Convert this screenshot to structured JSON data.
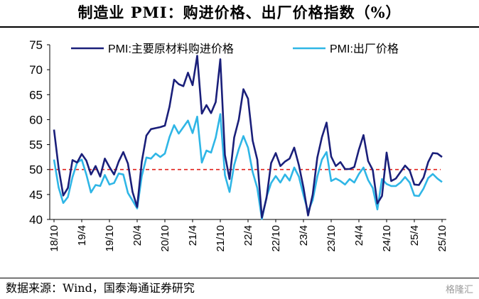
{
  "title": "制造业 PMI：购进价格、出厂价格指数（%）",
  "source": "数据来源：Wind，国泰海通证券研究",
  "watermark": "格隆汇",
  "chart_data": {
    "type": "line",
    "title": "制造业 PMI：购进价格、出厂价格指数（%）",
    "xlabel": "",
    "ylabel": "",
    "ylim": [
      40,
      75
    ],
    "yticks": [
      40,
      45,
      50,
      55,
      60,
      65,
      70,
      75
    ],
    "grid": false,
    "legend_position": "top",
    "reference_line": {
      "value": 50,
      "color": "#e0201b",
      "style": "dashed"
    },
    "xtick_labels": [
      "18/10",
      "19/4",
      "19/10",
      "20/4",
      "20/10",
      "21/4",
      "21/10",
      "22/4",
      "22/10",
      "23/4",
      "23/10",
      "24/4",
      "24/10",
      "25/4",
      "25/10"
    ],
    "x": [
      "18/10",
      "18/11",
      "18/12",
      "19/1",
      "19/2",
      "19/3",
      "19/4",
      "19/5",
      "19/6",
      "19/7",
      "19/8",
      "19/9",
      "19/10",
      "19/11",
      "19/12",
      "20/1",
      "20/2",
      "20/3",
      "20/4",
      "20/5",
      "20/6",
      "20/7",
      "20/8",
      "20/9",
      "20/10",
      "20/11",
      "20/12",
      "21/1",
      "21/2",
      "21/3",
      "21/4",
      "21/5",
      "21/6",
      "21/7",
      "21/8",
      "21/9",
      "21/10",
      "21/11",
      "21/12",
      "22/1",
      "22/2",
      "22/3",
      "22/4",
      "22/5",
      "22/6",
      "22/7",
      "22/8",
      "22/9",
      "22/10",
      "22/11",
      "22/12",
      "23/1",
      "23/2",
      "23/3",
      "23/4",
      "23/5",
      "23/6",
      "23/7",
      "23/8",
      "23/9",
      "23/10",
      "23/11",
      "23/12",
      "24/1",
      "24/2",
      "24/3",
      "24/4",
      "24/5",
      "24/6",
      "24/7",
      "24/8",
      "24/9",
      "24/10",
      "24/11",
      "24/12",
      "25/1",
      "25/2",
      "25/3",
      "25/4",
      "25/5",
      "25/6",
      "25/7",
      "25/8",
      "25/9",
      "25/10"
    ],
    "series": [
      {
        "name": "PMI:主要原材料购进价格",
        "color": "#1a1f7a",
        "values": [
          58.0,
          50.3,
          44.8,
          46.3,
          51.9,
          51.4,
          53.1,
          51.8,
          49.0,
          50.7,
          48.6,
          52.2,
          50.5,
          49.0,
          51.6,
          53.5,
          51.2,
          45.5,
          42.5,
          51.6,
          56.8,
          58.1,
          58.3,
          58.5,
          58.8,
          62.6,
          68.0,
          67.1,
          66.7,
          69.4,
          66.9,
          72.8,
          61.2,
          62.9,
          61.3,
          63.5,
          72.1,
          52.9,
          48.1,
          56.4,
          60.0,
          66.1,
          64.2,
          55.8,
          52.0,
          40.4,
          44.3,
          51.3,
          53.3,
          50.7,
          51.6,
          52.2,
          54.4,
          50.9,
          46.4,
          40.8,
          45.0,
          52.4,
          56.5,
          59.4,
          52.6,
          50.7,
          51.5,
          50.1,
          50.1,
          50.5,
          54.0,
          56.9,
          51.7,
          49.9,
          43.2,
          44.7,
          53.4,
          47.7,
          48.2,
          49.5,
          50.8,
          49.8,
          47.0,
          46.9,
          48.4,
          51.5,
          53.3,
          53.2,
          52.5
        ]
      },
      {
        "name": "PMI:出厂价格",
        "color": "#2fb6e6",
        "values": [
          52.0,
          46.4,
          43.3,
          44.5,
          48.5,
          51.4,
          52.0,
          49.0,
          45.4,
          46.9,
          46.7,
          48.9,
          47.0,
          47.3,
          49.2,
          49.0,
          45.3,
          43.8,
          42.2,
          48.7,
          52.4,
          52.2,
          53.2,
          52.5,
          53.2,
          56.5,
          58.9,
          57.2,
          58.5,
          59.8,
          57.3,
          60.6,
          51.4,
          53.8,
          53.4,
          56.4,
          61.1,
          48.9,
          45.5,
          50.9,
          54.1,
          56.7,
          54.4,
          49.5,
          46.3,
          40.1,
          44.5,
          47.3,
          48.7,
          47.4,
          49.0,
          47.8,
          50.4,
          48.6,
          44.9,
          41.6,
          43.9,
          48.6,
          52.0,
          53.5,
          47.7,
          48.2,
          47.7,
          47.0,
          48.1,
          47.4,
          49.1,
          50.4,
          47.9,
          46.3,
          42.0,
          48.1,
          47.1,
          46.7,
          46.7,
          47.4,
          48.5,
          47.4,
          44.8,
          44.7,
          46.2,
          48.3,
          49.1,
          48.2,
          47.5
        ]
      }
    ]
  }
}
